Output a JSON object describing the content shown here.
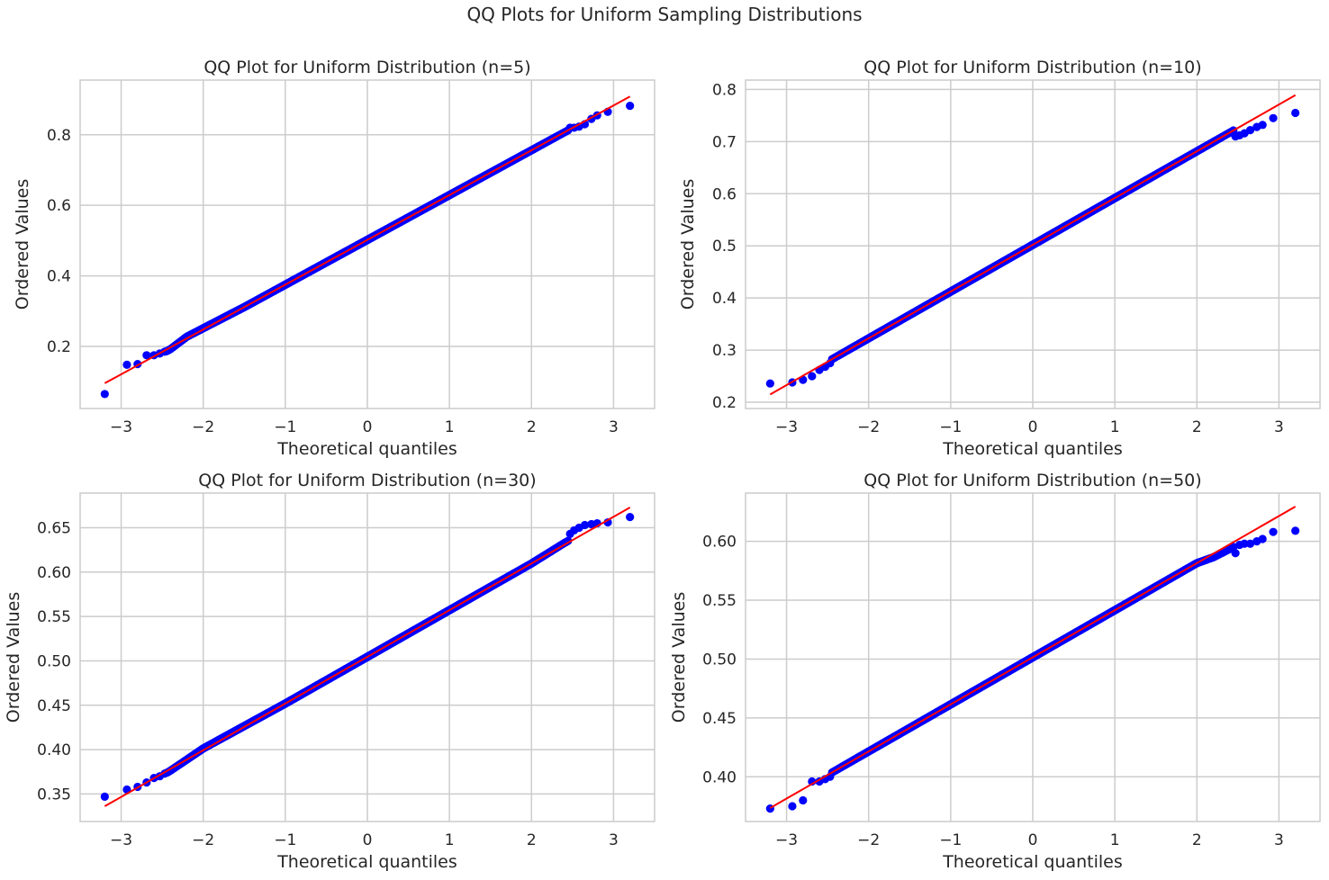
{
  "suptitle": "QQ Plots for Uniform Sampling Distributions",
  "colors": {
    "points": "#0000ff",
    "fit_line": "#ff0000",
    "grid": "#cccccc",
    "frame": "#cccccc",
    "text": "#262626"
  },
  "chart_data": [
    {
      "type": "scatter",
      "title": "QQ Plot for Uniform Distribution (n=5)",
      "xlabel": "Theoretical quantiles",
      "ylabel": "Ordered Values",
      "xlim": [
        -3.5,
        3.5
      ],
      "ylim": [
        0.024,
        0.955
      ],
      "xticks": [
        -3,
        -2,
        -1,
        0,
        1,
        2,
        3
      ],
      "yticks": [
        0.2,
        0.4,
        0.6,
        0.8
      ],
      "ytick_labels": [
        "0.2",
        "0.4",
        "0.6",
        "0.8"
      ],
      "grid": true,
      "n_points": 2000,
      "fit_line": {
        "intercept": 0.502,
        "slope": 0.127
      },
      "series": [
        {
          "marker": "circle",
          "tail_points": [
            [
              -3.2,
              0.065
            ],
            [
              -2.93,
              0.148
            ],
            [
              -2.8,
              0.15
            ],
            [
              -2.69,
              0.175
            ],
            [
              -2.6,
              0.175
            ],
            [
              -2.53,
              0.18
            ],
            [
              -2.47,
              0.185
            ],
            [
              2.47,
              0.82
            ],
            [
              2.52,
              0.82
            ],
            [
              2.58,
              0.823
            ],
            [
              2.65,
              0.83
            ],
            [
              2.73,
              0.845
            ],
            [
              2.8,
              0.855
            ],
            [
              2.93,
              0.865
            ],
            [
              3.2,
              0.882
            ]
          ],
          "residual_knots": [
            [
              -2.4,
              -0.005
            ],
            [
              -2.2,
              0.005
            ],
            [
              -1.5,
              0.0
            ],
            [
              0.0,
              0.0
            ],
            [
              1.5,
              0.0
            ],
            [
              2.0,
              0.0
            ],
            [
              2.4,
              0.0
            ]
          ]
        }
      ]
    },
    {
      "type": "scatter",
      "title": "QQ Plot for Uniform Distribution (n=10)",
      "xlabel": "Theoretical quantiles",
      "ylabel": "Ordered Values",
      "xlim": [
        -3.5,
        3.5
      ],
      "ylim": [
        0.188,
        0.818
      ],
      "xticks": [
        -3,
        -2,
        -1,
        0,
        1,
        2,
        3
      ],
      "yticks": [
        0.2,
        0.3,
        0.4,
        0.5,
        0.6,
        0.7,
        0.8
      ],
      "ytick_labels": [
        "0.2",
        "0.3",
        "0.4",
        "0.5",
        "0.6",
        "0.7",
        "0.8"
      ],
      "grid": true,
      "n_points": 2000,
      "fit_line": {
        "intercept": 0.502,
        "slope": 0.0897
      },
      "series": [
        {
          "marker": "circle",
          "tail_points": [
            [
              -3.2,
              0.236
            ],
            [
              -2.93,
              0.238
            ],
            [
              -2.8,
              0.243
            ],
            [
              -2.69,
              0.25
            ],
            [
              -2.6,
              0.262
            ],
            [
              -2.53,
              0.268
            ],
            [
              -2.47,
              0.275
            ],
            [
              2.47,
              0.71
            ],
            [
              2.52,
              0.712
            ],
            [
              2.58,
              0.716
            ],
            [
              2.65,
              0.722
            ],
            [
              2.73,
              0.728
            ],
            [
              2.8,
              0.732
            ],
            [
              2.93,
              0.745
            ],
            [
              3.2,
              0.755
            ]
          ],
          "residual_knots": [
            [
              -2.4,
              0.0
            ],
            [
              -2.0,
              0.0
            ],
            [
              0.0,
              0.0
            ],
            [
              2.0,
              0.0
            ],
            [
              2.4,
              0.0
            ]
          ]
        }
      ]
    },
    {
      "type": "scatter",
      "title": "QQ Plot for Uniform Distribution (n=30)",
      "xlabel": "Theoretical quantiles",
      "ylabel": "Ordered Values",
      "xlim": [
        -3.5,
        3.5
      ],
      "ylim": [
        0.319,
        0.689
      ],
      "xticks": [
        -3,
        -2,
        -1,
        0,
        1,
        2,
        3
      ],
      "yticks": [
        0.35,
        0.4,
        0.45,
        0.5,
        0.55,
        0.6,
        0.65
      ],
      "ytick_labels": [
        "0.35",
        "0.40",
        "0.45",
        "0.50",
        "0.55",
        "0.60",
        "0.65"
      ],
      "grid": true,
      "n_points": 2000,
      "fit_line": {
        "intercept": 0.5045,
        "slope": 0.0526
      },
      "series": [
        {
          "marker": "circle",
          "tail_points": [
            [
              -3.2,
              0.347
            ],
            [
              -2.93,
              0.355
            ],
            [
              -2.8,
              0.358
            ],
            [
              -2.69,
              0.363
            ],
            [
              -2.6,
              0.368
            ],
            [
              -2.53,
              0.37
            ],
            [
              -2.47,
              0.373
            ],
            [
              2.47,
              0.643
            ],
            [
              2.52,
              0.647
            ],
            [
              2.58,
              0.65
            ],
            [
              2.65,
              0.653
            ],
            [
              2.73,
              0.654
            ],
            [
              2.8,
              0.655
            ],
            [
              2.93,
              0.656
            ],
            [
              3.2,
              0.662
            ]
          ],
          "residual_knots": [
            [
              -2.4,
              -0.002
            ],
            [
              -2.0,
              0.002
            ],
            [
              -1.0,
              0.0
            ],
            [
              1.0,
              0.0
            ],
            [
              2.0,
              0.0
            ],
            [
              2.4,
              0.002
            ]
          ]
        }
      ]
    },
    {
      "type": "scatter",
      "title": "QQ Plot for Uniform Distribution (n=50)",
      "xlabel": "Theoretical quantiles",
      "ylabel": "Ordered Values",
      "xlim": [
        -3.5,
        3.5
      ],
      "ylim": [
        0.362,
        0.641
      ],
      "xticks": [
        -3,
        -2,
        -1,
        0,
        1,
        2,
        3
      ],
      "yticks": [
        0.4,
        0.45,
        0.5,
        0.55,
        0.6
      ],
      "ytick_labels": [
        "0.40",
        "0.45",
        "0.50",
        "0.55",
        "0.60"
      ],
      "grid": true,
      "n_points": 2000,
      "fit_line": {
        "intercept": 0.5015,
        "slope": 0.04
      },
      "series": [
        {
          "marker": "circle",
          "tail_points": [
            [
              -3.2,
              0.373
            ],
            [
              -2.93,
              0.375
            ],
            [
              -2.8,
              0.38
            ],
            [
              -2.69,
              0.396
            ],
            [
              -2.6,
              0.396
            ],
            [
              -2.53,
              0.398
            ],
            [
              -2.47,
              0.4
            ],
            [
              2.47,
              0.59
            ],
            [
              2.52,
              0.597
            ],
            [
              2.58,
              0.598
            ],
            [
              2.65,
              0.598
            ],
            [
              2.73,
              0.6
            ],
            [
              2.8,
              0.602
            ],
            [
              2.93,
              0.608
            ],
            [
              3.2,
              0.609
            ]
          ],
          "residual_knots": [
            [
              -2.4,
              0.0
            ],
            [
              -2.0,
              0.0
            ],
            [
              0.0,
              0.0
            ],
            [
              2.0,
              0.0
            ],
            [
              2.2,
              -0.003
            ],
            [
              2.4,
              -0.004
            ]
          ]
        }
      ]
    }
  ]
}
